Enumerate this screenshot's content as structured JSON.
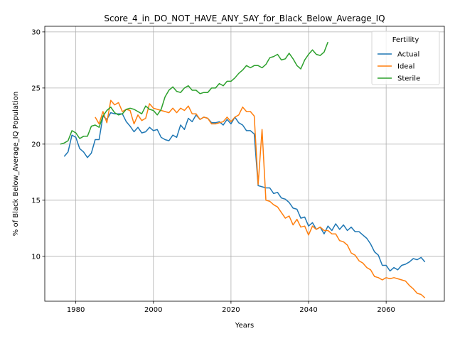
{
  "chart_data": {
    "type": "line",
    "title": "Score_4_in_DO_NOT_HAVE_ANY_SAY_for_Black_Below_Average_IQ",
    "xlabel": "Years",
    "ylabel": "% of Black Below_Average_IQ Population",
    "xlim": [
      1972,
      2075
    ],
    "ylim": [
      6.0,
      30.5
    ],
    "xticks": [
      1980,
      2000,
      2020,
      2040,
      2060
    ],
    "yticks": [
      10,
      15,
      20,
      25,
      30
    ],
    "grid": true,
    "legend": {
      "title": "Fertility",
      "position": "top-right"
    },
    "colors": {
      "Actual": "#1f77b4",
      "Ideal": "#ff7f0e",
      "Sterile": "#2ca02c"
    },
    "series": [
      {
        "name": "Actual",
        "x": [
          1977,
          1978,
          1979,
          1980,
          1981,
          1982,
          1983,
          1984,
          1985,
          1986,
          1987,
          1988,
          1989,
          1990,
          1991,
          1992,
          1993,
          1994,
          1995,
          1996,
          1997,
          1998,
          1999,
          2000,
          2001,
          2002,
          2003,
          2004,
          2005,
          2006,
          2007,
          2008,
          2009,
          2010,
          2011,
          2012,
          2013,
          2014,
          2015,
          2016,
          2017,
          2018,
          2019,
          2020,
          2021,
          2022,
          2023,
          2024,
          2025,
          2026,
          2027,
          2028,
          2029,
          2030,
          2031,
          2032,
          2033,
          2034,
          2035,
          2036,
          2037,
          2038,
          2039,
          2040,
          2041,
          2042,
          2043,
          2044,
          2045,
          2046,
          2047,
          2048,
          2049,
          2050,
          2051,
          2052,
          2053,
          2054,
          2055,
          2056,
          2057,
          2058,
          2059,
          2060,
          2061,
          2062,
          2063,
          2064,
          2065,
          2066,
          2067,
          2068,
          2069,
          2070
        ],
        "y": [
          18.9,
          19.3,
          20.8,
          20.6,
          19.6,
          19.3,
          18.8,
          19.2,
          20.4,
          20.4,
          22.5,
          22.2,
          22.8,
          22.7,
          22.7,
          22.7,
          22.0,
          21.6,
          21.1,
          21.5,
          21.0,
          21.1,
          21.5,
          21.2,
          21.3,
          20.6,
          20.4,
          20.3,
          20.8,
          20.6,
          21.7,
          21.3,
          22.3,
          22.0,
          22.6,
          22.2,
          22.4,
          22.3,
          21.9,
          21.9,
          22.0,
          21.7,
          22.2,
          21.8,
          22.4,
          21.9,
          21.7,
          21.2,
          21.2,
          20.9,
          16.3,
          16.2,
          16.1,
          16.1,
          15.6,
          15.7,
          15.2,
          15.1,
          14.8,
          14.3,
          14.2,
          13.4,
          13.5,
          12.7,
          13.0,
          12.4,
          12.6,
          12.0,
          12.7,
          12.3,
          12.9,
          12.4,
          12.8,
          12.3,
          12.6,
          12.2,
          12.2,
          11.9,
          11.6,
          11.1,
          10.4,
          10.1,
          9.2,
          9.2,
          8.7,
          9.0,
          8.8,
          9.2,
          9.3,
          9.5,
          9.8,
          9.7,
          9.9,
          9.5
        ]
      },
      {
        "name": "Ideal",
        "x": [
          1985,
          1986,
          1987,
          1988,
          1989,
          1990,
          1991,
          1992,
          1993,
          1994,
          1995,
          1996,
          1997,
          1998,
          1999,
          2000,
          2001,
          2002,
          2003,
          2004,
          2005,
          2006,
          2007,
          2008,
          2009,
          2010,
          2011,
          2012,
          2013,
          2014,
          2015,
          2016,
          2017,
          2018,
          2019,
          2020,
          2021,
          2022,
          2023,
          2024,
          2025,
          2026,
          2027,
          2028,
          2029,
          2030,
          2031,
          2032,
          2033,
          2034,
          2035,
          2036,
          2037,
          2038,
          2039,
          2040,
          2041,
          2042,
          2043,
          2044,
          2045,
          2046,
          2047,
          2048,
          2049,
          2050,
          2051,
          2052,
          2053,
          2054,
          2055,
          2056,
          2057,
          2058,
          2059,
          2060,
          2061,
          2062,
          2063,
          2064,
          2065,
          2066,
          2067,
          2068,
          2069,
          2070
        ],
        "y": [
          22.4,
          21.8,
          22.9,
          21.9,
          23.9,
          23.5,
          23.7,
          22.9,
          23.1,
          23.0,
          21.8,
          22.6,
          22.1,
          22.3,
          23.6,
          23.2,
          23.1,
          23.0,
          22.9,
          22.8,
          23.2,
          22.8,
          23.2,
          23.0,
          23.4,
          22.7,
          22.7,
          22.2,
          22.4,
          22.3,
          21.8,
          21.8,
          21.9,
          22.0,
          22.4,
          22.0,
          22.4,
          22.6,
          23.3,
          22.9,
          22.9,
          22.5,
          16.4,
          21.3,
          15.0,
          14.9,
          14.6,
          14.4,
          13.9,
          13.4,
          13.6,
          12.8,
          13.3,
          12.6,
          12.7,
          11.9,
          12.7,
          12.4,
          12.6,
          12.3,
          12.3,
          12.0,
          12.0,
          11.4,
          11.3,
          11.0,
          10.3,
          10.1,
          9.6,
          9.4,
          9.0,
          8.8,
          8.2,
          8.1,
          7.9,
          8.1,
          8.0,
          8.1,
          8.0,
          7.9,
          7.8,
          7.4,
          7.1,
          6.7,
          6.6,
          6.3
        ]
      },
      {
        "name": "Sterile",
        "x": [
          1976,
          1977,
          1978,
          1979,
          1980,
          1981,
          1982,
          1983,
          1984,
          1985,
          1986,
          1987,
          1988,
          1989,
          1990,
          1991,
          1992,
          1993,
          1994,
          1995,
          1996,
          1997,
          1998,
          1999,
          2000,
          2001,
          2002,
          2003,
          2004,
          2005,
          2006,
          2007,
          2008,
          2009,
          2010,
          2011,
          2012,
          2013,
          2014,
          2015,
          2016,
          2017,
          2018,
          2019,
          2020,
          2021,
          2022,
          2023,
          2024,
          2025,
          2026,
          2027,
          2028,
          2029,
          2030,
          2031,
          2032,
          2033,
          2034,
          2035,
          2036,
          2037,
          2038,
          2039,
          2040,
          2041,
          2042,
          2043,
          2044,
          2045
        ],
        "y": [
          20.0,
          20.1,
          20.3,
          21.2,
          21.0,
          20.5,
          20.7,
          20.7,
          21.6,
          21.7,
          21.5,
          22.5,
          23.0,
          23.3,
          22.8,
          22.6,
          22.7,
          23.1,
          23.2,
          23.1,
          22.9,
          22.7,
          23.4,
          23.1,
          23.0,
          22.6,
          23.1,
          24.2,
          24.8,
          25.1,
          24.7,
          24.6,
          25.0,
          25.2,
          24.8,
          24.8,
          24.5,
          24.6,
          24.6,
          25.0,
          25.0,
          25.4,
          25.2,
          25.6,
          25.6,
          25.9,
          26.3,
          26.6,
          27.0,
          26.8,
          27.0,
          27.0,
          26.8,
          27.1,
          27.7,
          27.8,
          28.0,
          27.5,
          27.6,
          28.1,
          27.6,
          27.0,
          26.7,
          27.5,
          28.0,
          28.4,
          28.0,
          27.9,
          28.2,
          29.1
        ]
      }
    ]
  }
}
